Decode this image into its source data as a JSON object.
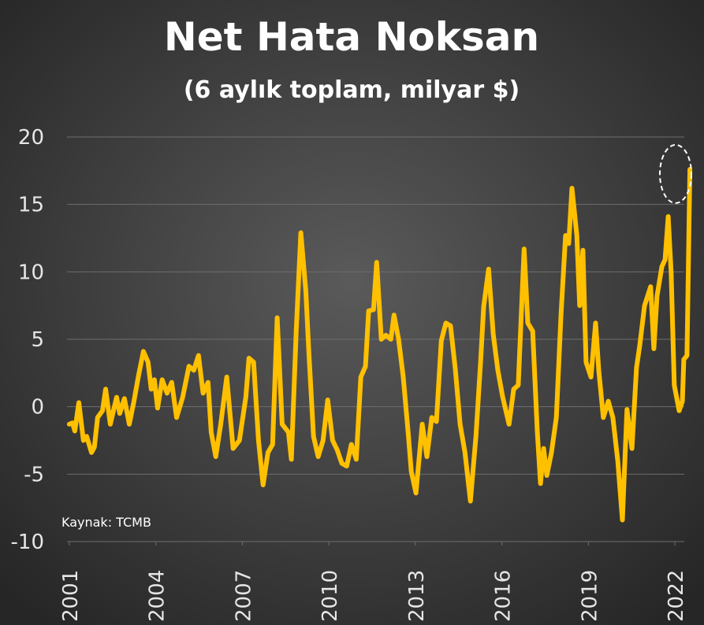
{
  "chart_data": {
    "type": "line",
    "title": "Net Hata Noksan",
    "subtitle": "(6 aylık toplam, milyar $)",
    "source": "Kaynak: TCMB",
    "xlim": [
      2000.92,
      2022.6
    ],
    "xticks": [
      2001,
      2004,
      2007,
      2010,
      2013,
      2016,
      2019,
      2022
    ],
    "ylim": [
      -10,
      20
    ],
    "yticks": [
      -10,
      -5,
      0,
      5,
      10,
      15,
      20
    ],
    "grid": true,
    "series": [
      {
        "color": "#ffc000",
        "x": [
          2001.0,
          2001.11,
          2001.19,
          2001.33,
          2001.49,
          2001.6,
          2001.77,
          2001.87,
          2001.98,
          2002.15,
          2002.26,
          2002.42,
          2002.64,
          2002.75,
          2002.91,
          2003.08,
          2003.24,
          2003.4,
          2003.57,
          2003.73,
          2003.84,
          2003.95,
          2004.06,
          2004.22,
          2004.39,
          2004.55,
          2004.72,
          2004.93,
          2005.15,
          2005.32,
          2005.48,
          2005.64,
          2005.81,
          2005.92,
          2006.08,
          2006.25,
          2006.46,
          2006.68,
          2006.9,
          2007.12,
          2007.23,
          2007.39,
          2007.56,
          2007.72,
          2007.89,
          2008.05,
          2008.21,
          2008.38,
          2008.6,
          2008.7,
          2008.87,
          2009.03,
          2009.2,
          2009.31,
          2009.47,
          2009.63,
          2009.8,
          2009.96,
          2010.13,
          2010.29,
          2010.45,
          2010.62,
          2010.78,
          2010.95,
          2011.11,
          2011.27,
          2011.38,
          2011.55,
          2011.66,
          2011.82,
          2011.98,
          2012.15,
          2012.26,
          2012.42,
          2012.58,
          2012.75,
          2012.86,
          2013.02,
          2013.24,
          2013.4,
          2013.57,
          2013.73,
          2013.9,
          2014.06,
          2014.22,
          2014.39,
          2014.55,
          2014.72,
          2014.91,
          2015.1,
          2015.26,
          2015.37,
          2015.54,
          2015.7,
          2015.86,
          2016.03,
          2016.25,
          2016.41,
          2016.57,
          2016.77,
          2016.9,
          2017.07,
          2017.23,
          2017.34,
          2017.45,
          2017.56,
          2017.72,
          2017.89,
          2018.05,
          2018.21,
          2018.32,
          2018.43,
          2018.6,
          2018.7,
          2018.81,
          2018.92,
          2019.09,
          2019.25,
          2019.36,
          2019.52,
          2019.69,
          2019.85,
          2020.02,
          2020.18,
          2020.34,
          2020.51,
          2020.67,
          2020.78,
          2020.95,
          2021.16,
          2021.27,
          2021.38,
          2021.55,
          2021.66,
          2021.77,
          2021.87,
          2021.98,
          2022.15,
          2022.26,
          2022.31,
          2022.42,
          2022.52
        ],
        "values": [
          -1.3,
          -1.2,
          -1.8,
          0.3,
          -2.5,
          -2.2,
          -3.4,
          -3.0,
          -0.8,
          -0.3,
          1.3,
          -1.3,
          0.7,
          -0.5,
          0.6,
          -1.3,
          0.4,
          2.3,
          4.1,
          3.3,
          1.3,
          2.0,
          -0.1,
          2.0,
          1.0,
          1.8,
          -0.8,
          0.7,
          3.0,
          2.7,
          3.8,
          1.0,
          1.8,
          -1.9,
          -3.7,
          -1.3,
          2.2,
          -3.1,
          -2.5,
          0.7,
          3.6,
          3.3,
          -2.5,
          -5.8,
          -3.4,
          -2.8,
          6.6,
          -1.3,
          -1.9,
          -3.9,
          5.7,
          12.9,
          8.6,
          3.9,
          -2.2,
          -3.7,
          -2.5,
          0.5,
          -2.5,
          -3.2,
          -4.2,
          -4.4,
          -2.8,
          -3.9,
          2.2,
          3.0,
          7.1,
          7.2,
          10.7,
          5.0,
          5.3,
          5.0,
          6.8,
          5.0,
          2.2,
          -1.9,
          -4.8,
          -6.4,
          -1.3,
          -3.7,
          -0.8,
          -1.1,
          4.9,
          6.2,
          6.0,
          2.7,
          -1.3,
          -3.4,
          -7.0,
          -2.2,
          3.2,
          7.4,
          10.2,
          5.4,
          2.7,
          0.7,
          -1.3,
          1.3,
          1.6,
          11.7,
          6.2,
          5.6,
          -1.9,
          -5.7,
          -3.1,
          -5.1,
          -3.4,
          -0.8,
          6.8,
          12.7,
          12.1,
          16.2,
          12.7,
          7.5,
          11.6,
          3.3,
          2.2,
          6.2,
          2.7,
          -0.8,
          0.4,
          -0.8,
          -4.0,
          -8.4,
          -0.2,
          -3.1,
          2.9,
          4.5,
          7.5,
          8.9,
          4.3,
          8.2,
          10.4,
          10.9,
          14.1,
          10.0,
          1.6,
          -0.3,
          0.4,
          3.5,
          3.8,
          17.6
        ]
      }
    ]
  }
}
